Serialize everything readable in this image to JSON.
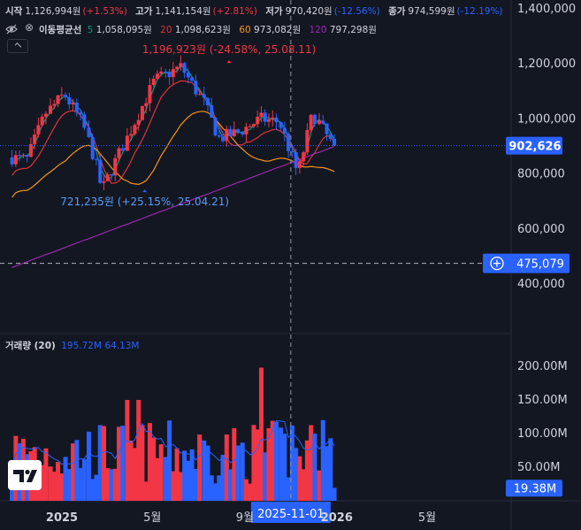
{
  "header": {
    "open_label": "시작",
    "open_value": "1,126,994원",
    "open_change": "(+1.53%)",
    "high_label": "고가",
    "high_value": "1,141,154원",
    "high_change": "(+2.81%)",
    "low_label": "저가",
    "low_value": "970,420원",
    "low_change": "(-12.56%)",
    "close_label": "종가",
    "close_value": "974,599원",
    "close_change": "(-12.19%)",
    "ma_label": "이동평균선",
    "ma5_period": "5",
    "ma5_value": "1,058,095원",
    "ma20_period": "20",
    "ma20_value": "1,098,623원",
    "ma60_period": "60",
    "ma60_value": "973,082원",
    "ma120_period": "120",
    "ma120_value": "797,298원"
  },
  "volume_header": {
    "label": "거래량 (20)",
    "value1": "195.72M",
    "value2": "64.13M"
  },
  "colors": {
    "up": "#f23645",
    "down": "#2962ff",
    "ma5": "#089981",
    "ma20": "#e0323c",
    "ma60": "#f7931a",
    "ma120": "#9c27b0",
    "vol_ma": "#2962ff",
    "price_tag": "#2962ff"
  },
  "chart_data": {
    "type": "candlestick",
    "price_axis": {
      "ticks": [
        400000,
        600000,
        800000,
        1000000,
        1200000,
        1400000
      ],
      "tick_labels": [
        "400,000",
        "600,000",
        "800,000",
        "1,000,000",
        "1,200,000",
        "1,400,000"
      ]
    },
    "volume_axis": {
      "ticks": [
        50,
        100,
        150,
        200
      ],
      "tick_labels": [
        "50.00M",
        "100.00M",
        "150.00M",
        "200.00M"
      ]
    },
    "x_ticks": [
      "2025",
      "5월",
      "9월",
      "2026",
      "5월"
    ],
    "x_tick_dates": [
      "2025-01-01",
      "2025-05-01",
      "2025-09-01",
      "2026-01-01",
      "2026-05-01"
    ],
    "current_price_label": "902,626",
    "current_price": 902626,
    "horizontal_line_label": "475,079",
    "horizontal_line": 475079,
    "crosshair_label": "2025-11-01",
    "crosshair_date": "2025-11-01",
    "current_volume_label": "19.38M",
    "current_volume": 19.38,
    "annotation_high": "1,196,923원 (-24.58%, 25.08.11)",
    "annotation_low": "721,235원 (+25.15%, 25.04.21)",
    "annotation_high_price": 1196923,
    "annotation_low_price": 721235,
    "annotation_high_date": "2025-08-11",
    "annotation_low_date": "2025-04-21",
    "series": [
      {
        "name": "MA5",
        "period": 5
      },
      {
        "name": "MA20",
        "period": 20
      },
      {
        "name": "MA60",
        "period": 60
      },
      {
        "name": "MA120",
        "period": 120
      }
    ]
  }
}
